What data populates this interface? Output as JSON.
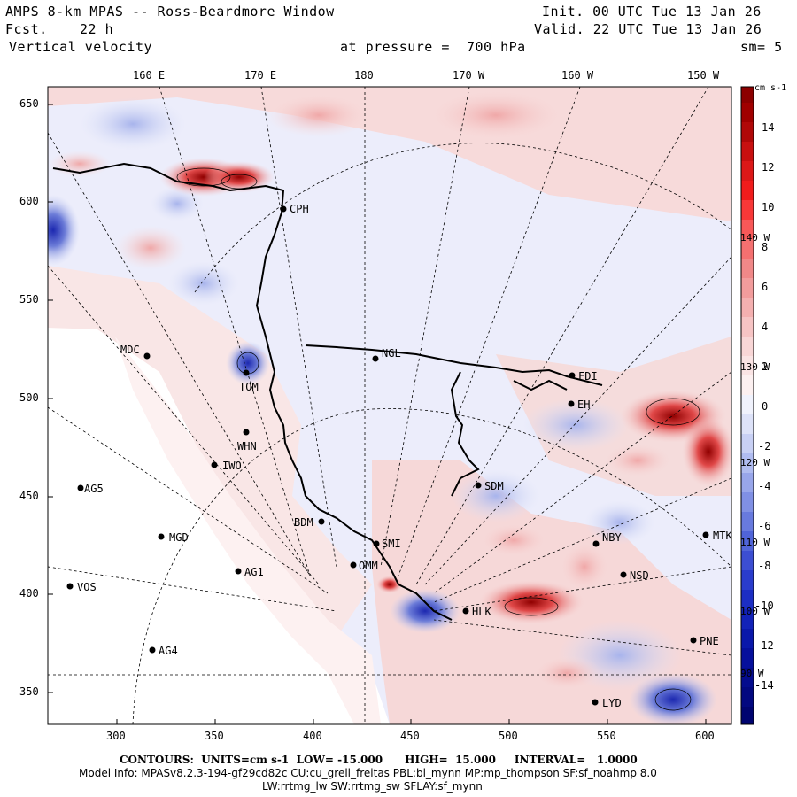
{
  "header": {
    "title": "AMPS 8-km MPAS -- Ross-Beardmore Window",
    "fcst_label": "Fcst.",
    "fcst_value": "22 h",
    "field": "Vertical velocity",
    "init": "Init. 00 UTC Tue 13 Jan 26",
    "valid": "Valid. 22 UTC Tue 13 Jan 26",
    "pressure": "at pressure =  700 hPa",
    "smooth": "sm= 5"
  },
  "axes": {
    "top_ticks": [
      "160 E",
      "170 E",
      "180",
      "170 W",
      "160 W",
      "150 W"
    ],
    "left_ticks": [
      "650",
      "600",
      "550",
      "500",
      "450",
      "400",
      "350"
    ],
    "bottom_ticks": [
      "300",
      "350",
      "400",
      "450",
      "500",
      "550",
      "600"
    ],
    "right_lon_labels": [
      "140 W",
      "130 W",
      "120 W",
      "110 W",
      "100 W",
      "90 W"
    ]
  },
  "colorbar": {
    "units": "cm s-1",
    "labels": [
      "14",
      "12",
      "10",
      "8",
      "6",
      "4",
      "2",
      "0",
      "-2",
      "-4",
      "-6",
      "-8",
      "-10",
      "-12",
      "-14"
    ]
  },
  "stations": [
    {
      "id": "CPH"
    },
    {
      "id": "MDC"
    },
    {
      "id": "NGL"
    },
    {
      "id": "TOM"
    },
    {
      "id": "FDI"
    },
    {
      "id": "EH"
    },
    {
      "id": "WHN"
    },
    {
      "id": "IWO"
    },
    {
      "id": "AG5"
    },
    {
      "id": "SDM"
    },
    {
      "id": "BDM"
    },
    {
      "id": "SMI"
    },
    {
      "id": "MGD"
    },
    {
      "id": "NBY"
    },
    {
      "id": "MTK"
    },
    {
      "id": "AG1"
    },
    {
      "id": "OMM"
    },
    {
      "id": "NSD"
    },
    {
      "id": "VOS"
    },
    {
      "id": "HLK"
    },
    {
      "id": "PNE"
    },
    {
      "id": "AG4"
    },
    {
      "id": "LYD"
    }
  ],
  "footer": {
    "contours": "CONTOURS:  UNITS=cm s-1  LOW= -15.000      HIGH=  15.000     INTERVAL=   1.0000",
    "model_info": "Model Info: MPASv8.2.3-194-gf29cd82c CU:cu_grell_freitas PBL:bl_mynn MP:mp_thompson SF:sf_noahmp 8.0",
    "physics": "LW:rrtmg_lw SW:rrtmg_sw SFLAY:sf_mynn"
  },
  "colors": {
    "neg_strong": "#1010b0",
    "neg_mid": "#6070d8",
    "neg_light": "#c8d0f4",
    "pos_light": "#f6cccc",
    "pos_mid": "#e06060",
    "pos_strong": "#b00000"
  }
}
